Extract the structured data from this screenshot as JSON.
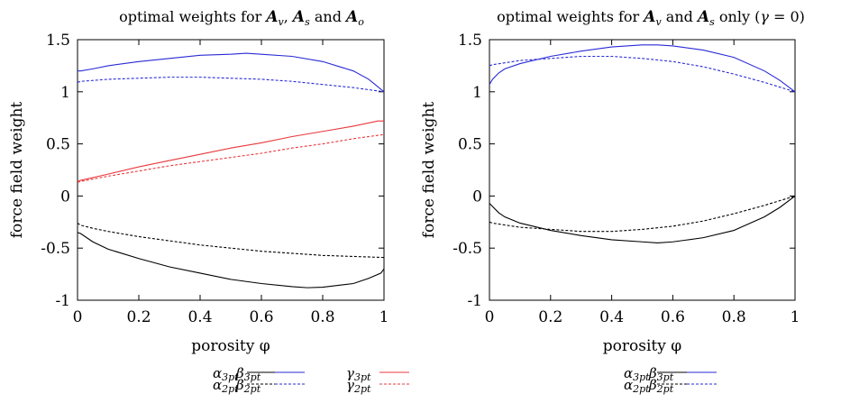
{
  "chart_data": [
    {
      "type": "line",
      "title": "optimal weights for A_v, A_s and A_o",
      "title_parts": [
        {
          "t": "optimal weights for ",
          "s": "n"
        },
        {
          "t": "A",
          "s": "bi"
        },
        {
          "t": "v",
          "s": "sub"
        },
        {
          "t": ", ",
          "s": "n"
        },
        {
          "t": "A",
          "s": "bi"
        },
        {
          "t": "s",
          "s": "sub"
        },
        {
          "t": " and ",
          "s": "n"
        },
        {
          "t": "A",
          "s": "bi"
        },
        {
          "t": "o",
          "s": "sub"
        }
      ],
      "xlabel": "porosity φ",
      "ylabel": "force field weight",
      "xlim": [
        0,
        1
      ],
      "ylim": [
        -1,
        1.5
      ],
      "xticks": [
        0,
        0.2,
        0.4,
        0.6,
        0.8,
        1
      ],
      "xtick_labels": [
        "0",
        "0.2",
        "0.4",
        "0.6",
        "0.8",
        "1"
      ],
      "yticks": [
        -1,
        -0.5,
        0,
        0.5,
        1,
        1.5
      ],
      "ytick_labels": [
        "-1",
        "-0.5",
        "0",
        "0.5",
        "1",
        "1.5"
      ],
      "grid": false,
      "legend_position": "bottom",
      "series": [
        {
          "name": "α3pt",
          "sym": "α",
          "sub": "3pt",
          "color": "#000000",
          "dash": "solid",
          "x": [
            0,
            0.01,
            0.05,
            0.1,
            0.2,
            0.3,
            0.4,
            0.5,
            0.6,
            0.7,
            0.75,
            0.8,
            0.9,
            0.95,
            0.99,
            1
          ],
          "y": [
            -0.35,
            -0.36,
            -0.44,
            -0.51,
            -0.6,
            -0.68,
            -0.74,
            -0.8,
            -0.84,
            -0.87,
            -0.88,
            -0.875,
            -0.84,
            -0.79,
            -0.74,
            -0.7
          ]
        },
        {
          "name": "α2pt",
          "sym": "α",
          "sub": "2pt",
          "color": "#000000",
          "dash": "dashed",
          "x": [
            0,
            0.01,
            0.05,
            0.1,
            0.2,
            0.3,
            0.4,
            0.5,
            0.6,
            0.7,
            0.8,
            0.9,
            1
          ],
          "y": [
            -0.26,
            -0.28,
            -0.31,
            -0.34,
            -0.39,
            -0.43,
            -0.47,
            -0.5,
            -0.53,
            -0.55,
            -0.57,
            -0.58,
            -0.59
          ]
        },
        {
          "name": "β3pt",
          "sym": "β",
          "sub": "3pt",
          "color": "#2a2ad6",
          "dash": "solid",
          "x": [
            0,
            0.01,
            0.05,
            0.1,
            0.2,
            0.3,
            0.4,
            0.5,
            0.55,
            0.6,
            0.7,
            0.8,
            0.9,
            0.95,
            1
          ],
          "y": [
            1.2,
            1.2,
            1.22,
            1.25,
            1.29,
            1.32,
            1.35,
            1.36,
            1.37,
            1.36,
            1.34,
            1.29,
            1.2,
            1.12,
            1.0
          ]
        },
        {
          "name": "β2pt",
          "sym": "β",
          "sub": "2pt",
          "color": "#2a2ad6",
          "dash": "dashed",
          "x": [
            0,
            0.01,
            0.1,
            0.2,
            0.3,
            0.4,
            0.5,
            0.6,
            0.7,
            0.8,
            0.9,
            1
          ],
          "y": [
            1.09,
            1.1,
            1.12,
            1.13,
            1.14,
            1.14,
            1.13,
            1.12,
            1.1,
            1.07,
            1.04,
            1.0
          ]
        },
        {
          "name": "γ3pt",
          "sym": "γ",
          "sub": "3pt",
          "color": "#e8383d",
          "dash": "solid",
          "x": [
            0,
            0.01,
            0.1,
            0.2,
            0.3,
            0.4,
            0.5,
            0.6,
            0.7,
            0.8,
            0.9,
            0.98,
            1
          ],
          "y": [
            0.14,
            0.15,
            0.21,
            0.28,
            0.34,
            0.4,
            0.46,
            0.51,
            0.57,
            0.62,
            0.67,
            0.72,
            0.72
          ]
        },
        {
          "name": "γ2pt",
          "sym": "γ",
          "sub": "2pt",
          "color": "#e8383d",
          "dash": "dashed",
          "x": [
            0,
            0.01,
            0.1,
            0.2,
            0.3,
            0.4,
            0.5,
            0.6,
            0.7,
            0.8,
            0.9,
            1
          ],
          "y": [
            0.13,
            0.14,
            0.19,
            0.24,
            0.29,
            0.33,
            0.37,
            0.41,
            0.46,
            0.5,
            0.55,
            0.59
          ]
        }
      ]
    },
    {
      "type": "line",
      "title": "optimal weights for A_v and A_s only (γ = 0)",
      "title_parts": [
        {
          "t": "optimal weights for ",
          "s": "n"
        },
        {
          "t": "A",
          "s": "bi"
        },
        {
          "t": "v",
          "s": "sub"
        },
        {
          "t": " and ",
          "s": "n"
        },
        {
          "t": "A",
          "s": "bi"
        },
        {
          "t": "s",
          "s": "sub"
        },
        {
          "t": " only (",
          "s": "n"
        },
        {
          "t": "γ",
          "s": "i"
        },
        {
          "t": " = 0)",
          "s": "n"
        }
      ],
      "xlabel": "porosity φ",
      "ylabel": "force field weight",
      "xlim": [
        0,
        1
      ],
      "ylim": [
        -1,
        1.5
      ],
      "xticks": [
        0,
        0.2,
        0.4,
        0.6,
        0.8,
        1
      ],
      "xtick_labels": [
        "0",
        "0.2",
        "0.4",
        "0.6",
        "0.8",
        "1"
      ],
      "yticks": [
        -1,
        -0.5,
        0,
        0.5,
        1,
        1.5
      ],
      "ytick_labels": [
        "-1",
        "-0.5",
        "0",
        "0.5",
        "1",
        "1.5"
      ],
      "grid": false,
      "legend_position": "bottom",
      "series": [
        {
          "name": "α3pt",
          "sym": "α",
          "sub": "3pt",
          "color": "#000000",
          "dash": "solid",
          "x": [
            0,
            0.01,
            0.03,
            0.05,
            0.1,
            0.2,
            0.3,
            0.4,
            0.5,
            0.55,
            0.6,
            0.7,
            0.8,
            0.9,
            0.95,
            1
          ],
          "y": [
            -0.07,
            -0.1,
            -0.16,
            -0.2,
            -0.26,
            -0.33,
            -0.38,
            -0.42,
            -0.44,
            -0.45,
            -0.44,
            -0.4,
            -0.33,
            -0.2,
            -0.11,
            0
          ]
        },
        {
          "name": "α2pt",
          "sym": "α",
          "sub": "2pt",
          "color": "#000000",
          "dash": "dashed",
          "x": [
            0,
            0.01,
            0.1,
            0.2,
            0.3,
            0.35,
            0.4,
            0.5,
            0.6,
            0.7,
            0.8,
            0.9,
            1
          ],
          "y": [
            -0.25,
            -0.26,
            -0.3,
            -0.32,
            -0.34,
            -0.34,
            -0.34,
            -0.32,
            -0.29,
            -0.24,
            -0.17,
            -0.09,
            0
          ]
        },
        {
          "name": "β3pt",
          "sym": "β",
          "sub": "3pt",
          "color": "#2a2ad6",
          "dash": "solid",
          "x": [
            0,
            0.01,
            0.03,
            0.05,
            0.1,
            0.2,
            0.3,
            0.4,
            0.5,
            0.55,
            0.6,
            0.7,
            0.8,
            0.9,
            0.95,
            1
          ],
          "y": [
            1.07,
            1.12,
            1.18,
            1.22,
            1.27,
            1.34,
            1.39,
            1.43,
            1.45,
            1.45,
            1.44,
            1.4,
            1.33,
            1.2,
            1.11,
            1.0
          ]
        },
        {
          "name": "β2pt",
          "sym": "β",
          "sub": "2pt",
          "color": "#2a2ad6",
          "dash": "dashed",
          "x": [
            0,
            0.01,
            0.1,
            0.2,
            0.3,
            0.35,
            0.4,
            0.5,
            0.6,
            0.7,
            0.8,
            0.9,
            1
          ],
          "y": [
            1.25,
            1.26,
            1.3,
            1.32,
            1.34,
            1.34,
            1.34,
            1.32,
            1.29,
            1.24,
            1.17,
            1.09,
            1.0
          ]
        }
      ]
    }
  ]
}
